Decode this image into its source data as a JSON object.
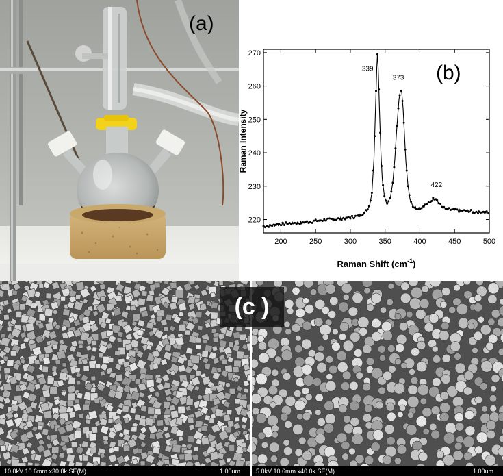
{
  "panels": {
    "a": {
      "label": "(a)"
    },
    "b": {
      "label": "(b)"
    },
    "c": {
      "label": "(c )",
      "left_caption": "10.0kV 10.6mm x30.0k SE(M)",
      "left_scale": "1.00um",
      "right_caption": "5.0kV 10.6mm x40.0k SE(M)",
      "right_scale": "1.00um"
    }
  },
  "chart_data": {
    "type": "line",
    "xlabel": "Raman Shift (cm",
    "xlabel_sup": "-1",
    "xlabel_close": ")",
    "ylabel": "Raman Intensity",
    "xlim": [
      175,
      500
    ],
    "ylim": [
      216,
      271
    ],
    "x_ticks": [
      200,
      250,
      300,
      350,
      400,
      450,
      500
    ],
    "y_ticks": [
      220,
      230,
      240,
      250,
      260,
      270
    ],
    "peaks": [
      {
        "label": "339",
        "x": 339,
        "y": 269.5
      },
      {
        "label": "373",
        "x": 373,
        "y": 259
      },
      {
        "label": "422",
        "x": 422,
        "y": 226.5
      }
    ],
    "series": [
      {
        "color": "#000000",
        "x": [
          175,
          185,
          195,
          205,
          215,
          225,
          235,
          245,
          255,
          265,
          275,
          285,
          295,
          305,
          310,
          315,
          320,
          325,
          328,
          331,
          334,
          336,
          338,
          339,
          340,
          342,
          344,
          346,
          349,
          352,
          355,
          358,
          361,
          364,
          367,
          370,
          372,
          373,
          374,
          376,
          378,
          380,
          383,
          386,
          390,
          395,
          400,
          405,
          410,
          415,
          418,
          420,
          422,
          424,
          427,
          431,
          436,
          442,
          450,
          460,
          470,
          480,
          490,
          500
        ],
        "y": [
          218,
          218.2,
          218.5,
          218.7,
          218.9,
          219,
          219.2,
          219.4,
          219.7,
          219.9,
          220,
          220.3,
          220.5,
          220.8,
          221,
          221.4,
          222,
          223,
          224.5,
          228,
          238,
          252,
          265,
          269.5,
          266,
          252,
          240,
          232,
          227,
          225,
          225.5,
          227,
          231,
          238,
          248,
          256,
          258.5,
          259,
          258,
          253,
          245,
          237,
          230,
          226,
          224,
          223.5,
          223.5,
          224,
          224.5,
          225,
          226,
          226.3,
          226.5,
          226,
          225,
          224,
          223.2,
          223,
          222.8,
          222.6,
          222.5,
          222.3,
          222.2,
          222
        ]
      }
    ]
  }
}
